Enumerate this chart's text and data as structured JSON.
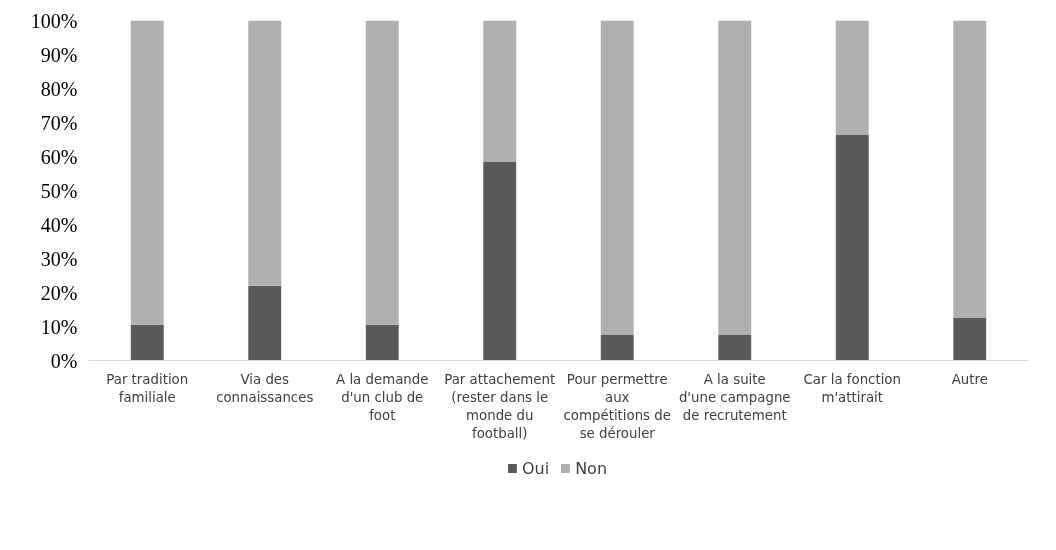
{
  "chart_data": {
    "type": "bar",
    "stacked": true,
    "categories": [
      "Par tradition familiale",
      "Via des connaissances",
      "A la demande d'un club de foot",
      "Par attachement (rester dans le monde du football)",
      "Pour permettre aux compétitions de se dérouler",
      "A la suite d'une campagne de recrutement",
      "Car la fonction m'attirait",
      "Autre"
    ],
    "series": [
      {
        "name": "Oui",
        "color": "#595959",
        "values": [
          10.5,
          22,
          10.5,
          58.5,
          7.5,
          7.5,
          66.5,
          12.5
        ]
      },
      {
        "name": "Non",
        "color": "#b0b0b0",
        "values": [
          89.5,
          78,
          89.5,
          41.5,
          92.5,
          92.5,
          33.5,
          87.5
        ]
      }
    ],
    "ylim": [
      0,
      100
    ],
    "yticks": [
      {
        "value": 0,
        "label": "0%"
      },
      {
        "value": 10,
        "label": "10%"
      },
      {
        "value": 20,
        "label": "20%"
      },
      {
        "value": 30,
        "label": "30%"
      },
      {
        "value": 40,
        "label": "40%"
      },
      {
        "value": 50,
        "label": "50%"
      },
      {
        "value": 60,
        "label": "60%"
      },
      {
        "value": 70,
        "label": "70%"
      },
      {
        "value": 80,
        "label": "80%"
      },
      {
        "value": 90,
        "label": "90%"
      },
      {
        "value": 100,
        "label": "100%"
      }
    ],
    "grid": false,
    "legend": "bottom"
  }
}
